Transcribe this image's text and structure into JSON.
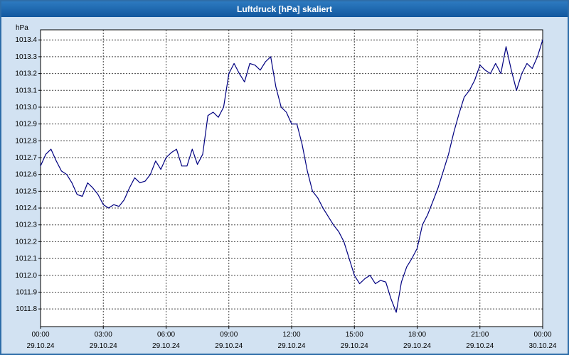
{
  "window": {
    "title": "Luftdruck [hPa] skaliert"
  },
  "colors": {
    "line": "#000080",
    "titlebar_top": "#2d7ac0",
    "titlebar_bottom": "#12589f",
    "background": "#d2e2f2",
    "grid": "#444444",
    "plot_background": "#ffffff"
  },
  "chart_data": {
    "type": "line",
    "title": "Luftdruck [hPa] skaliert",
    "ylabel": "hPa",
    "grid": true,
    "legend": "none",
    "xlim": [
      0,
      24
    ],
    "ylim": [
      1011.695,
      1013.46
    ],
    "y_ticks": [
      {
        "value": 1013.4,
        "label": "1013.4"
      },
      {
        "value": 1013.3,
        "label": "1013.3"
      },
      {
        "value": 1013.2,
        "label": "1013.2"
      },
      {
        "value": 1013.1,
        "label": "1013.1"
      },
      {
        "value": 1013.0,
        "label": "1013.0"
      },
      {
        "value": 1012.9,
        "label": "1012.9"
      },
      {
        "value": 1012.8,
        "label": "1012.8"
      },
      {
        "value": 1012.7,
        "label": "1012.7"
      },
      {
        "value": 1012.6,
        "label": "1012.6"
      },
      {
        "value": 1012.5,
        "label": "1012.5"
      },
      {
        "value": 1012.4,
        "label": "1012.4"
      },
      {
        "value": 1012.3,
        "label": "1012.3"
      },
      {
        "value": 1012.2,
        "label": "1012.2"
      },
      {
        "value": 1012.1,
        "label": "1012.1"
      },
      {
        "value": 1012.0,
        "label": "1012.0"
      },
      {
        "value": 1011.9,
        "label": "1011.9"
      },
      {
        "value": 1011.8,
        "label": "1011.8"
      }
    ],
    "x_ticks": [
      {
        "hour": 0,
        "time": "00:00",
        "date": "29.10.24"
      },
      {
        "hour": 3,
        "time": "03:00",
        "date": "29.10.24"
      },
      {
        "hour": 6,
        "time": "06:00",
        "date": "29.10.24"
      },
      {
        "hour": 9,
        "time": "09:00",
        "date": "29.10.24"
      },
      {
        "hour": 12,
        "time": "12:00",
        "date": "29.10.24"
      },
      {
        "hour": 15,
        "time": "15:00",
        "date": "29.10.24"
      },
      {
        "hour": 18,
        "time": "18:00",
        "date": "29.10.24"
      },
      {
        "hour": 21,
        "time": "21:00",
        "date": "29.10.24"
      },
      {
        "hour": 24,
        "time": "00:00",
        "date": "30.10.24"
      }
    ],
    "series": [
      {
        "name": "Luftdruck",
        "x_start_hours": 0,
        "x_step_hours": 0.25,
        "values": [
          1012.65,
          1012.72,
          1012.75,
          1012.68,
          1012.62,
          1012.6,
          1012.55,
          1012.48,
          1012.47,
          1012.55,
          1012.52,
          1012.48,
          1012.42,
          1012.4,
          1012.42,
          1012.41,
          1012.45,
          1012.52,
          1012.58,
          1012.55,
          1012.56,
          1012.6,
          1012.68,
          1012.63,
          1012.7,
          1012.73,
          1012.75,
          1012.65,
          1012.65,
          1012.75,
          1012.66,
          1012.72,
          1012.95,
          1012.97,
          1012.94,
          1013.0,
          1013.2,
          1013.26,
          1013.2,
          1013.15,
          1013.26,
          1013.25,
          1013.22,
          1013.27,
          1013.3,
          1013.12,
          1013.0,
          1012.97,
          1012.9,
          1012.9,
          1012.78,
          1012.62,
          1012.5,
          1012.46,
          1012.4,
          1012.35,
          1012.3,
          1012.26,
          1012.2,
          1012.1,
          1012.0,
          1011.95,
          1011.98,
          1012.0,
          1011.95,
          1011.97,
          1011.96,
          1011.86,
          1011.78,
          1011.96,
          1012.05,
          1012.1,
          1012.16,
          1012.3,
          1012.36,
          1012.44,
          1012.52,
          1012.62,
          1012.72,
          1012.85,
          1012.96,
          1013.06,
          1013.1,
          1013.16,
          1013.25,
          1013.22,
          1013.2,
          1013.26,
          1013.2,
          1013.36,
          1013.22,
          1013.1,
          1013.2,
          1013.26,
          1013.23,
          1013.3,
          1013.4
        ]
      }
    ]
  }
}
